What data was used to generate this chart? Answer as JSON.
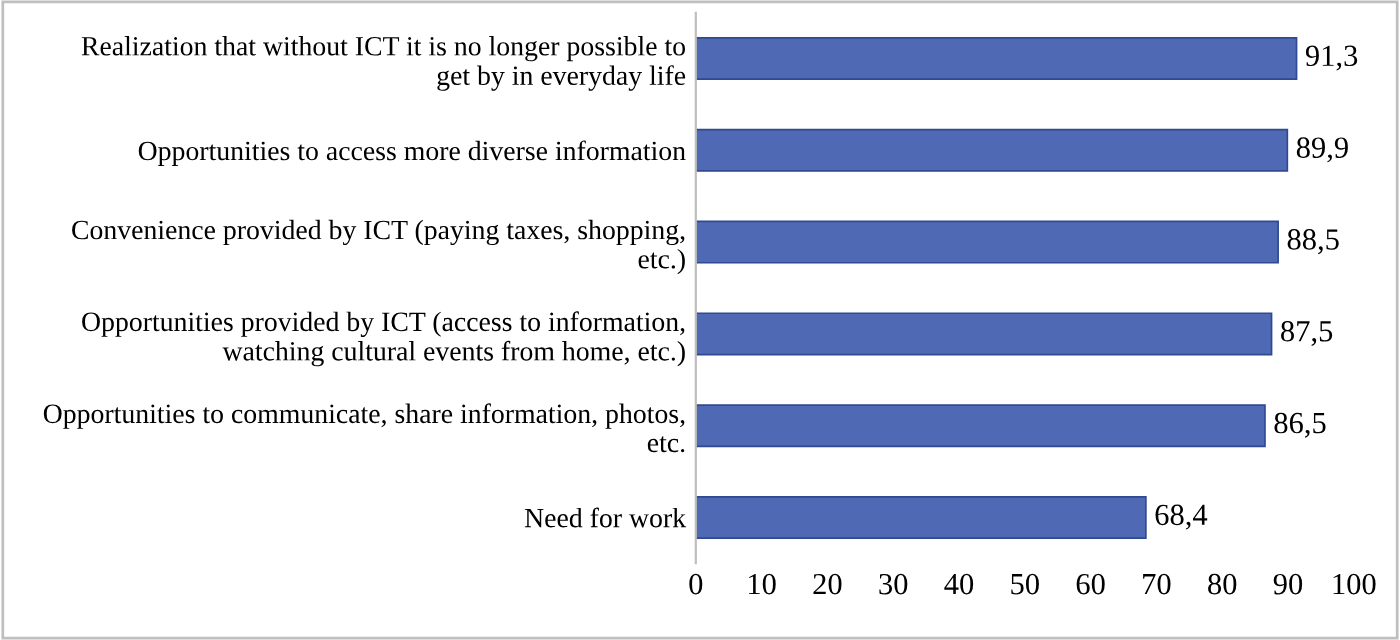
{
  "chart_data": {
    "type": "bar",
    "orientation": "horizontal",
    "categories": [
      "Realization that without ICT it is no longer possible to\nget by in everyday life",
      "Opportunities to access more diverse information",
      "Convenience provided by ICT (paying taxes, shopping,\netc.)",
      "Opportunities provided by ICT (access to information,\nwatching cultural events from home, etc.)",
      "Opportunities to communicate, share information, photos,\netc.",
      "Need for work"
    ],
    "values": [
      91.3,
      89.9,
      88.5,
      87.5,
      86.5,
      68.4
    ],
    "value_labels": [
      "91,3",
      "89,9",
      "88,5",
      "87,5",
      "86,5",
      "68,4"
    ],
    "color": "#4f69b5",
    "xlim": [
      0,
      100
    ],
    "xticks": [
      0,
      10,
      20,
      30,
      40,
      50,
      60,
      70,
      80,
      90,
      100
    ],
    "grid": false,
    "legend": false
  }
}
